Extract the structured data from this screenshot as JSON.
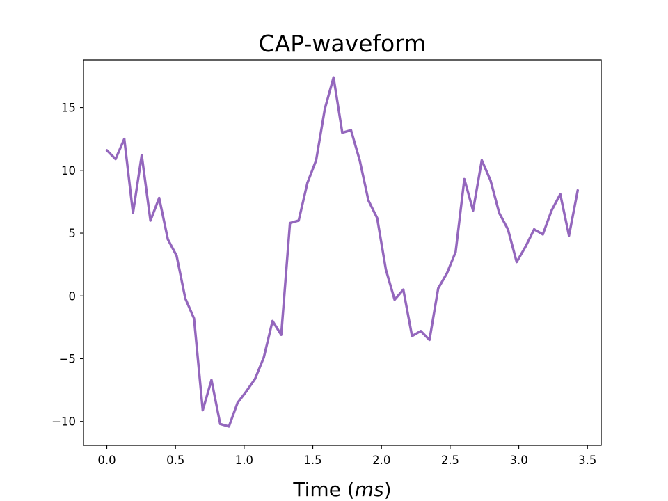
{
  "chart_data": {
    "type": "line",
    "title": "CAP-waveform",
    "xlabel_prefix": "Time (",
    "xlabel_unit": "ms",
    "xlabel_suffix": ")",
    "ylabel": "",
    "xlim": [
      -0.17,
      3.6
    ],
    "ylim": [
      -11.9,
      18.8
    ],
    "xticks": [
      0.0,
      0.5,
      1.0,
      1.5,
      2.0,
      2.5,
      3.0,
      3.5
    ],
    "xtick_labels": [
      "0.0",
      "0.5",
      "1.0",
      "1.5",
      "2.0",
      "2.5",
      "3.0",
      "3.5"
    ],
    "yticks": [
      -10,
      -5,
      0,
      5,
      10,
      15
    ],
    "ytick_labels": [
      "−10",
      "−5",
      "0",
      "5",
      "10",
      "15"
    ],
    "grid": false,
    "series": [
      {
        "color": "#9467bd",
        "x": [
          0.0,
          0.0635,
          0.127,
          0.1905,
          0.254,
          0.3175,
          0.381,
          0.4445,
          0.508,
          0.5715,
          0.635,
          0.6985,
          0.762,
          0.8255,
          0.889,
          0.9525,
          1.016,
          1.0795,
          1.143,
          1.2065,
          1.27,
          1.3335,
          1.397,
          1.4605,
          1.524,
          1.5875,
          1.651,
          1.7145,
          1.778,
          1.8415,
          1.905,
          1.9685,
          2.032,
          2.0955,
          2.159,
          2.2225,
          2.286,
          2.3495,
          2.413,
          2.4765,
          2.54,
          2.6035,
          2.667,
          2.7305,
          2.794,
          2.8575,
          2.921,
          2.9845,
          3.048,
          3.1115,
          3.175,
          3.2385,
          3.302,
          3.3655,
          3.429
        ],
        "y": [
          11.6,
          10.9,
          12.5,
          6.6,
          11.2,
          6.0,
          7.8,
          4.5,
          3.2,
          -0.2,
          -1.8,
          -9.1,
          -6.7,
          -10.2,
          -10.4,
          -8.5,
          -7.6,
          -6.6,
          -4.9,
          -2.0,
          -3.1,
          5.8,
          6.0,
          9.0,
          10.8,
          14.9,
          17.4,
          13.0,
          13.2,
          10.8,
          7.6,
          6.2,
          2.1,
          -0.3,
          0.5,
          -3.2,
          -2.8,
          -3.5,
          0.6,
          1.8,
          3.5,
          9.3,
          6.8,
          10.8,
          9.2,
          6.6,
          5.3,
          2.7,
          3.9,
          5.3,
          4.9,
          6.8,
          8.1,
          4.8,
          8.4
        ]
      }
    ]
  }
}
